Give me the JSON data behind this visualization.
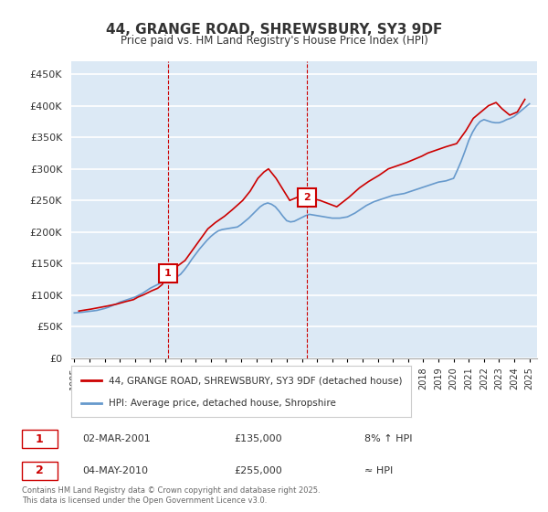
{
  "title": "44, GRANGE ROAD, SHREWSBURY, SY3 9DF",
  "subtitle": "Price paid vs. HM Land Registry's House Price Index (HPI)",
  "ylabel_ticks": [
    "£0",
    "£50K",
    "£100K",
    "£150K",
    "£200K",
    "£250K",
    "£300K",
    "£350K",
    "£400K",
    "£450K"
  ],
  "ylim": [
    0,
    470000
  ],
  "xlim_start": 1995.0,
  "xlim_end": 2025.5,
  "background_color": "#dce9f5",
  "plot_bg_color": "#dce9f5",
  "grid_color": "#ffffff",
  "red_line_color": "#cc0000",
  "blue_line_color": "#6699cc",
  "marker1_x": 2001.17,
  "marker1_y": 135000,
  "marker1_label": "1",
  "marker1_date": "02-MAR-2001",
  "marker1_price": "£135,000",
  "marker1_note": "8% ↑ HPI",
  "marker2_x": 2010.34,
  "marker2_y": 255000,
  "marker2_label": "2",
  "marker2_date": "04-MAY-2010",
  "marker2_price": "£255,000",
  "marker2_note": "≈ HPI",
  "legend_line1": "44, GRANGE ROAD, SHREWSBURY, SY3 9DF (detached house)",
  "legend_line2": "HPI: Average price, detached house, Shropshire",
  "footnote": "Contains HM Land Registry data © Crown copyright and database right 2025.\nThis data is licensed under the Open Government Licence v3.0.",
  "hpi_years": [
    1995.0,
    1995.25,
    1995.5,
    1995.75,
    1996.0,
    1996.25,
    1996.5,
    1996.75,
    1997.0,
    1997.25,
    1997.5,
    1997.75,
    1998.0,
    1998.25,
    1998.5,
    1998.75,
    1999.0,
    1999.25,
    1999.5,
    1999.75,
    2000.0,
    2000.25,
    2000.5,
    2000.75,
    2001.0,
    2001.25,
    2001.5,
    2001.75,
    2002.0,
    2002.25,
    2002.5,
    2002.75,
    2003.0,
    2003.25,
    2003.5,
    2003.75,
    2004.0,
    2004.25,
    2004.5,
    2004.75,
    2005.0,
    2005.25,
    2005.5,
    2005.75,
    2006.0,
    2006.25,
    2006.5,
    2006.75,
    2007.0,
    2007.25,
    2007.5,
    2007.75,
    2008.0,
    2008.25,
    2008.5,
    2008.75,
    2009.0,
    2009.25,
    2009.5,
    2009.75,
    2010.0,
    2010.25,
    2010.5,
    2010.75,
    2011.0,
    2011.25,
    2011.5,
    2011.75,
    2012.0,
    2012.25,
    2012.5,
    2012.75,
    2013.0,
    2013.25,
    2013.5,
    2013.75,
    2014.0,
    2014.25,
    2014.5,
    2014.75,
    2015.0,
    2015.25,
    2015.5,
    2015.75,
    2016.0,
    2016.25,
    2016.5,
    2016.75,
    2017.0,
    2017.25,
    2017.5,
    2017.75,
    2018.0,
    2018.25,
    2018.5,
    2018.75,
    2019.0,
    2019.25,
    2019.5,
    2019.75,
    2020.0,
    2020.25,
    2020.5,
    2020.75,
    2021.0,
    2021.25,
    2021.5,
    2021.75,
    2022.0,
    2022.25,
    2022.5,
    2022.75,
    2023.0,
    2023.25,
    2023.5,
    2023.75,
    2024.0,
    2024.25,
    2024.5,
    2024.75,
    2025.0
  ],
  "hpi_values": [
    72000,
    72500,
    73000,
    73800,
    74500,
    75200,
    76000,
    77500,
    79000,
    81000,
    83500,
    86000,
    89000,
    91000,
    93000,
    95000,
    97000,
    100000,
    103000,
    107000,
    111000,
    114000,
    117000,
    120000,
    123000,
    125000,
    127000,
    129000,
    133000,
    140000,
    148000,
    157000,
    165000,
    173000,
    180000,
    187000,
    193000,
    198000,
    202000,
    204000,
    205000,
    206000,
    207000,
    208000,
    212000,
    217000,
    222000,
    228000,
    234000,
    240000,
    244000,
    246000,
    244000,
    240000,
    233000,
    225000,
    218000,
    216000,
    217000,
    220000,
    223000,
    226000,
    228000,
    227000,
    226000,
    225000,
    224000,
    223000,
    222000,
    222000,
    222000,
    223000,
    224000,
    227000,
    230000,
    234000,
    238000,
    242000,
    245000,
    248000,
    250000,
    252000,
    254000,
    256000,
    258000,
    259000,
    260000,
    261000,
    263000,
    265000,
    267000,
    269000,
    271000,
    273000,
    275000,
    277000,
    279000,
    280000,
    281000,
    283000,
    285000,
    298000,
    312000,
    328000,
    345000,
    358000,
    368000,
    375000,
    378000,
    376000,
    374000,
    373000,
    373000,
    375000,
    378000,
    380000,
    383000,
    388000,
    393000,
    398000,
    403000
  ],
  "price_years": [
    1995.3,
    1996.1,
    1997.2,
    1997.8,
    1998.4,
    1998.9,
    1999.2,
    1999.6,
    2000.1,
    2000.5,
    2000.8,
    2001.17,
    2002.3,
    2003.2,
    2003.8,
    2004.3,
    2004.9,
    2005.4,
    2006.1,
    2006.6,
    2007.1,
    2007.5,
    2007.8,
    2008.3,
    2009.2,
    2009.7,
    2010.34,
    2011.2,
    2012.3,
    2013.1,
    2013.8,
    2014.4,
    2015.1,
    2015.7,
    2016.3,
    2016.9,
    2017.4,
    2017.9,
    2018.3,
    2018.9,
    2019.5,
    2020.2,
    2020.8,
    2021.3,
    2021.8,
    2022.3,
    2022.8,
    2023.2,
    2023.7,
    2024.2,
    2024.7
  ],
  "price_values": [
    75000,
    78000,
    83000,
    86000,
    90000,
    93000,
    97000,
    101000,
    107000,
    111000,
    117000,
    135000,
    155000,
    185000,
    205000,
    215000,
    225000,
    235000,
    250000,
    265000,
    285000,
    295000,
    300000,
    285000,
    250000,
    255000,
    255000,
    250000,
    240000,
    255000,
    270000,
    280000,
    290000,
    300000,
    305000,
    310000,
    315000,
    320000,
    325000,
    330000,
    335000,
    340000,
    360000,
    380000,
    390000,
    400000,
    405000,
    395000,
    385000,
    390000,
    410000
  ]
}
